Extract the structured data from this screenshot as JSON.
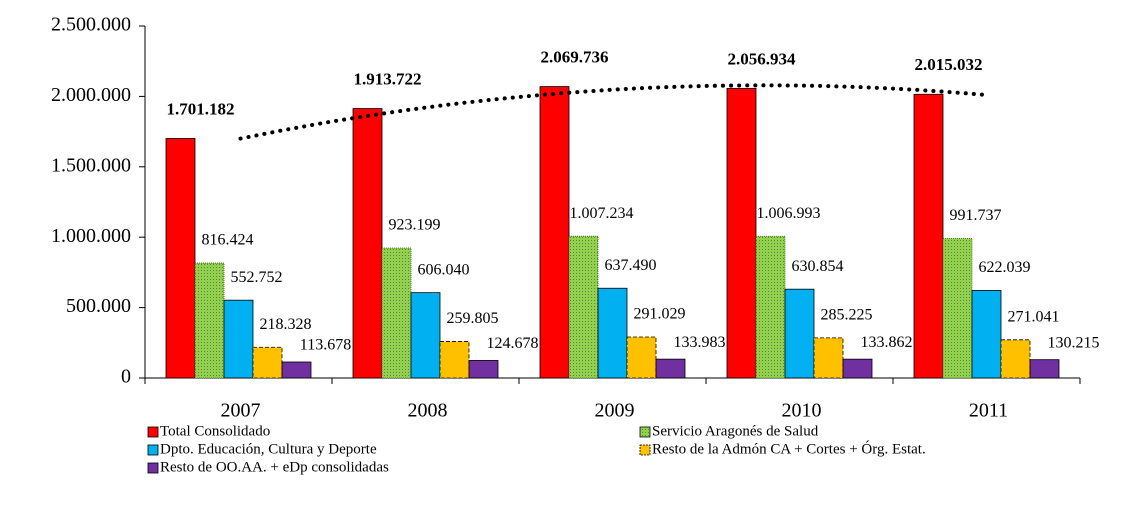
{
  "chart_data": {
    "type": "bar",
    "categories": [
      "2007",
      "2008",
      "2009",
      "2010",
      "2011"
    ],
    "series": [
      {
        "name": "Total Consolidado",
        "color": "#ff0000",
        "values": [
          1701182,
          1913722,
          2069736,
          2056934,
          2015032
        ],
        "value_labels": [
          "1.701.182",
          "1.913.722",
          "2.069.736",
          "2.056.934",
          "2.015.032"
        ],
        "trendline": "polynomial"
      },
      {
        "name": "Servicio Aragonés de Salud",
        "color": "#92d050",
        "values": [
          816424,
          923199,
          1007234,
          1006993,
          991737
        ],
        "value_labels": [
          "816.424",
          "923.199",
          "1.007.234",
          "1.006.993",
          "991.737"
        ]
      },
      {
        "name": "Dpto. Educación, Cultura y Deporte",
        "color": "#00b0f0",
        "values": [
          552752,
          606040,
          637490,
          630854,
          622039
        ],
        "value_labels": [
          "552.752",
          "606.040",
          "637.490",
          "630.854",
          "622.039"
        ]
      },
      {
        "name": "Resto de la Admón CA + Cortes + Órg. Estat.",
        "color": "#ffc000",
        "values": [
          218328,
          259805,
          291029,
          285225,
          271041
        ],
        "value_labels": [
          "218.328",
          "259.805",
          "291.029",
          "285.225",
          "271.041"
        ]
      },
      {
        "name": "Resto de OO.AA. + eDp consolidadas",
        "color": "#7030a0",
        "values": [
          113678,
          124678,
          133983,
          133862,
          130215
        ],
        "value_labels": [
          "113.678",
          "124.678",
          "133.983",
          "133.862",
          "130.215"
        ]
      }
    ],
    "ylim": [
      0,
      2500000
    ],
    "yticks": [
      0,
      {
        "value": 500000,
        "label": "500.000"
      },
      {
        "value": 1000000,
        "label": "1.000.000"
      },
      {
        "value": 1500000,
        "label": "1.500.000"
      },
      {
        "value": 2000000,
        "label": "2.000.000"
      },
      {
        "value": 2500000,
        "label": "2.500.000"
      }
    ],
    "grid": false
  }
}
